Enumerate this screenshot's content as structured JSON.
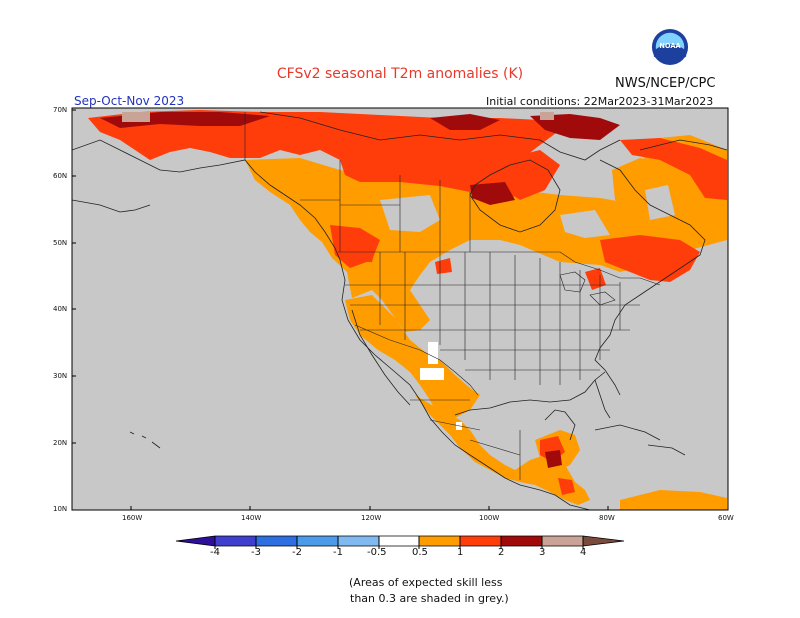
{
  "title": "CFSv2 seasonal T2m anomalies (K)",
  "agency": "NWS/NCEP/CPC",
  "season": "Sep-Oct-Nov 2023",
  "initial_conditions": "Initial conditions: 22Mar2023-31Mar2023",
  "footnote_line1": "(Areas of expected skill less",
  "footnote_line2": "than 0.3 are shaded in grey.)",
  "colors": {
    "grey": "#c8c8c8",
    "white": "#ffffff",
    "orange": "#ff9c00",
    "red_orange": "#ff3d0a",
    "dark_red": "#a10a0a",
    "pink_brown": "#c9a396"
  },
  "map": {
    "lon_labels": [
      "160W",
      "140W",
      "120W",
      "100W",
      "80W",
      "60W"
    ],
    "lat_labels": [
      "70N",
      "60N",
      "50N",
      "40N",
      "30N",
      "20N",
      "10N"
    ]
  },
  "colorbar": {
    "labels": [
      "-4",
      "-3",
      "-2",
      "-1",
      "-0.5",
      "0.5",
      "1",
      "2",
      "3",
      "4"
    ],
    "colors": [
      "#2d0f99",
      "#3f3fcf",
      "#2d6fe0",
      "#4c9be8",
      "#7fb9f0",
      "#ffffff",
      "#ff9c00",
      "#ff3d0a",
      "#a10a0a",
      "#c9a396",
      "#7a4a3c"
    ]
  }
}
